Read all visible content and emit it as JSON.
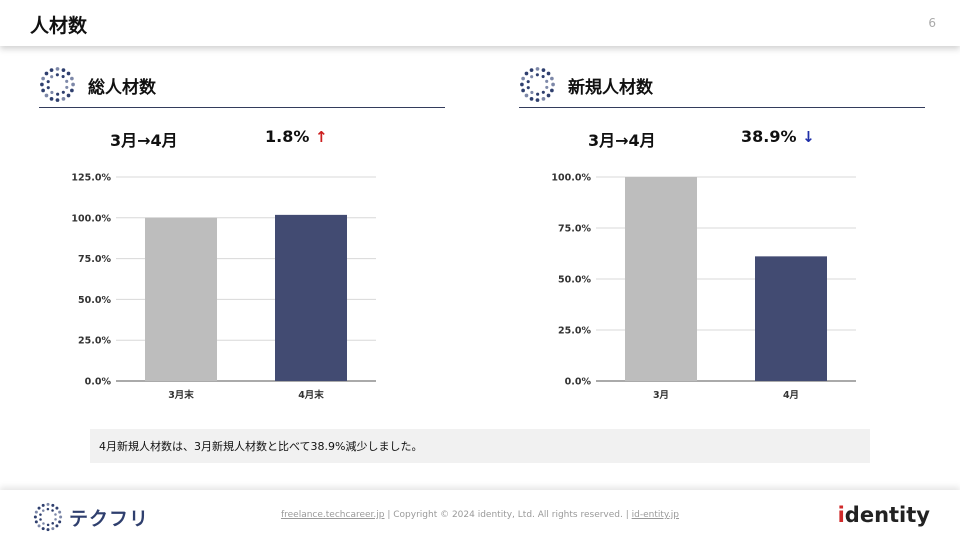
{
  "header": {
    "title": "人材数",
    "page_number": "6"
  },
  "sections": [
    {
      "title": "総人材数",
      "period": "3月→4月",
      "change": "1.8%",
      "change_arrow": "↑",
      "arrow_color": "#cc1f1f"
    },
    {
      "title": "新規人材数",
      "period": "3月→4月",
      "change": "38.9%",
      "change_arrow": "↓",
      "arrow_color": "#1f2fa8"
    }
  ],
  "chart_data": [
    {
      "type": "bar",
      "categories": [
        "3月末",
        "4月末"
      ],
      "values": [
        100.0,
        101.8
      ],
      "bar_colors": [
        "#bdbdbd",
        "#424b72"
      ],
      "ylim": [
        0,
        125
      ],
      "yticks": [
        "0.0%",
        "25.0%",
        "50.0%",
        "75.0%",
        "100.0%",
        "125.0%"
      ],
      "ytick_values": [
        0,
        25,
        50,
        75,
        100,
        125
      ]
    },
    {
      "type": "bar",
      "categories": [
        "3月",
        "4月"
      ],
      "values": [
        100.0,
        61.1
      ],
      "bar_colors": [
        "#bdbdbd",
        "#424b72"
      ],
      "ylim": [
        0,
        100
      ],
      "yticks": [
        "0.0%",
        "25.0%",
        "50.0%",
        "75.0%",
        "100.0%"
      ],
      "ytick_values": [
        0,
        25,
        50,
        75,
        100
      ]
    }
  ],
  "note": "4月新規人材数は、3月新規人材数と比べて38.9%減少しました。",
  "footer": {
    "brand": "テクフリ",
    "link1": "freelance.techcareer.jp",
    "sep1": " | Copyright © 2024 identity, Ltd. All rights reserved. | ",
    "link2": "id-entity.jp",
    "logo_text_i": "i",
    "logo_text_rest": "dentity",
    "colors": {
      "navy": "#424b72",
      "grey": "#bdbdbd",
      "accent_red": "#d02a2a"
    }
  }
}
